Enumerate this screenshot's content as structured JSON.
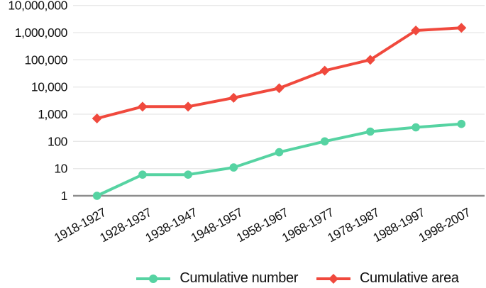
{
  "figure": {
    "kind": "static-line-chart-figure"
  },
  "chart_data": {
    "type": "line",
    "title": "",
    "xlabel": "",
    "ylabel": "",
    "y_scale": "log10",
    "ylim": [
      1,
      10000000
    ],
    "grid": "horizontal",
    "legend_position": "bottom-center",
    "y_tick_labels": [
      "1",
      "10",
      "100",
      "1,000",
      "10,000",
      "100,000",
      "1,000,000",
      "10,000,000"
    ],
    "categories": [
      "1918-1927",
      "1928-1937",
      "1938-1947",
      "1948-1957",
      "1958-1967",
      "1968-1977",
      "1978-1987",
      "1988-1997",
      "1998-2007"
    ],
    "series": [
      {
        "name": "Cumulative number",
        "marker": "circle",
        "color": "#56d3a2",
        "values": [
          1,
          6,
          6,
          11,
          40,
          100,
          230,
          330,
          440
        ]
      },
      {
        "name": "Cumulative area",
        "marker": "diamond",
        "color": "#f0493d",
        "values": [
          700,
          1900,
          1900,
          4000,
          9000,
          40000,
          100000,
          1200000,
          1500000
        ]
      }
    ],
    "colors": {
      "gridline": "#e8e8e8",
      "axis_line": "#8c8c8c",
      "tick_text": "#111111"
    }
  }
}
